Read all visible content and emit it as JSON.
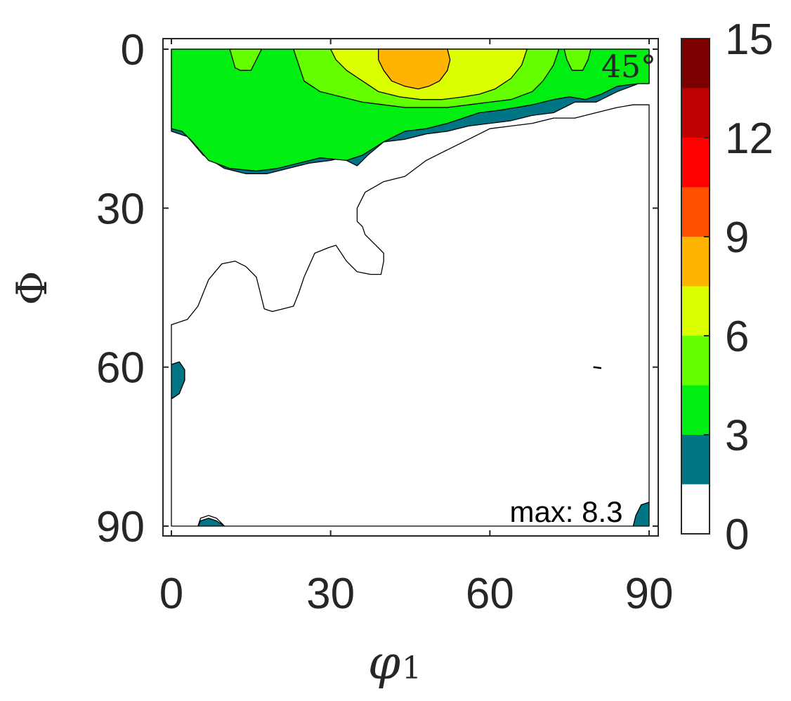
{
  "chart_data": {
    "type": "heatmap",
    "subtype": "filled-contour",
    "xlabel": "φ",
    "xlabel_subscript": "1",
    "ylabel": "Φ",
    "xlim": [
      0,
      90
    ],
    "ylim": [
      0,
      90
    ],
    "y_axis_direction": "reversed",
    "x_ticks": [
      0,
      30,
      60,
      90
    ],
    "y_ticks": [
      0,
      30,
      60,
      90
    ],
    "section_label": "45°",
    "max_annotation": "max: 8.3",
    "colorbar": {
      "ticks": [
        0,
        3,
        6,
        9,
        12,
        15
      ],
      "levels": [
        0,
        1.5,
        3,
        4.5,
        6,
        7.5,
        9,
        10.5,
        12,
        13.5,
        15
      ],
      "colors": [
        "#ffffff",
        "#007585",
        "#00ee12",
        "#66ff00",
        "#dcff00",
        "#ffb400",
        "#ff5000",
        "#ff0000",
        "#bd0000",
        "#7d0000"
      ]
    },
    "regions": [
      {
        "level": 1,
        "color": "#007585",
        "polygons": [
          [
            [
              0,
              15.5
            ],
            [
              3,
              16.5
            ],
            [
              6,
              20
            ],
            [
              10,
              22.5
            ],
            [
              14,
              23.5
            ],
            [
              18,
              23.5
            ],
            [
              22,
              22.5
            ],
            [
              26,
              21.5
            ],
            [
              30,
              21
            ],
            [
              32,
              20.5
            ],
            [
              35,
              22
            ],
            [
              37,
              20
            ],
            [
              40,
              17.5
            ],
            [
              44,
              17
            ],
            [
              48,
              16
            ],
            [
              52,
              15.5
            ],
            [
              56,
              14.5
            ],
            [
              60,
              14
            ],
            [
              64,
              13.5
            ],
            [
              68,
              12.5
            ],
            [
              72,
              12
            ],
            [
              76,
              10
            ],
            [
              80,
              10
            ],
            [
              84,
              8
            ],
            [
              88,
              6.5
            ],
            [
              90,
              6.5
            ],
            [
              90,
              0
            ],
            [
              0,
              0
            ]
          ],
          [
            [
              0,
              59.5
            ],
            [
              1.5,
              59
            ],
            [
              2.5,
              60.5
            ],
            [
              2.5,
              62.5
            ],
            [
              1.5,
              65
            ],
            [
              0,
              66
            ]
          ],
          [
            [
              5,
              90
            ],
            [
              5.5,
              89
            ],
            [
              7,
              88.5
            ],
            [
              8.5,
              89
            ],
            [
              10,
              90
            ]
          ],
          [
            [
              87,
              90
            ],
            [
              87.5,
              88
            ],
            [
              88.5,
              86
            ],
            [
              90,
              85.5
            ],
            [
              90,
              90
            ]
          ]
        ]
      },
      {
        "level": 2,
        "color": "#00ee12",
        "polygons": [
          [
            [
              0,
              0
            ],
            [
              90,
              0
            ],
            [
              90,
              6.5
            ],
            [
              88,
              6.5
            ],
            [
              84,
              7
            ],
            [
              81,
              8.5
            ],
            [
              78,
              9.5
            ],
            [
              75,
              9
            ],
            [
              72,
              9.5
            ],
            [
              68,
              10.5
            ],
            [
              65,
              11
            ],
            [
              62,
              11.5
            ],
            [
              58,
              12
            ],
            [
              55,
              13
            ],
            [
              52,
              14
            ],
            [
              48,
              15
            ],
            [
              44,
              15.5
            ],
            [
              40,
              17.5
            ],
            [
              36,
              20
            ],
            [
              33,
              21
            ],
            [
              28,
              20.5
            ],
            [
              24,
              21.5
            ],
            [
              20,
              22.5
            ],
            [
              16,
              23
            ],
            [
              11,
              22.5
            ],
            [
              7,
              21
            ],
            [
              4,
              17.5
            ],
            [
              2,
              15.5
            ],
            [
              0,
              15
            ]
          ]
        ]
      },
      {
        "level": 3,
        "color": "#66ff00",
        "polygons": [
          [
            [
              23,
              0
            ],
            [
              73,
              0
            ],
            [
              72,
              3
            ],
            [
              70,
              6
            ],
            [
              68,
              8
            ],
            [
              64,
              9.5
            ],
            [
              60,
              10
            ],
            [
              56,
              10.5
            ],
            [
              52,
              11
            ],
            [
              48,
              11
            ],
            [
              44,
              11
            ],
            [
              40,
              10.5
            ],
            [
              36,
              10
            ],
            [
              32,
              9
            ],
            [
              28,
              8
            ],
            [
              25,
              6
            ],
            [
              24,
              3
            ]
          ],
          [
            [
              11,
              0
            ],
            [
              17,
              0
            ],
            [
              16,
              2
            ],
            [
              15,
              4
            ],
            [
              13,
              4
            ],
            [
              12,
              3.5
            ]
          ],
          [
            [
              74,
              0
            ],
            [
              79,
              0
            ],
            [
              78.5,
              2
            ],
            [
              77.5,
              4
            ],
            [
              75.5,
              4
            ],
            [
              74.5,
              2
            ]
          ]
        ]
      },
      {
        "level": 4,
        "color": "#dcff00",
        "polygons": [
          [
            [
              30,
              0
            ],
            [
              67,
              0
            ],
            [
              66,
              3
            ],
            [
              64,
              5.5
            ],
            [
              61,
              7.5
            ],
            [
              58,
              8.5
            ],
            [
              55,
              9
            ],
            [
              51,
              9.5
            ],
            [
              47,
              9.5
            ],
            [
              43,
              9
            ],
            [
              39,
              8
            ],
            [
              36,
              6
            ],
            [
              33,
              4
            ],
            [
              31,
              2
            ]
          ]
        ]
      },
      {
        "level": 5,
        "color": "#ffb400",
        "polygons": [
          [
            [
              39,
              0
            ],
            [
              52,
              0
            ],
            [
              52.5,
              2
            ],
            [
              52,
              4
            ],
            [
              50.5,
              6
            ],
            [
              48.5,
              7
            ],
            [
              46.5,
              7.5
            ],
            [
              44,
              7
            ],
            [
              41.5,
              6
            ],
            [
              40,
              4
            ],
            [
              39,
              2
            ]
          ]
        ]
      }
    ],
    "white_holes": [
      [
        [
          0,
          52
        ],
        [
          3,
          51
        ],
        [
          5,
          48.5
        ],
        [
          7,
          43.5
        ],
        [
          9.5,
          40.5
        ],
        [
          12,
          40
        ],
        [
          14,
          41
        ],
        [
          16,
          43
        ],
        [
          17.5,
          49
        ],
        [
          19,
          49.5
        ],
        [
          21,
          49
        ],
        [
          23,
          48.5
        ],
        [
          24,
          46
        ],
        [
          25,
          43
        ],
        [
          27,
          38.5
        ],
        [
          29.5,
          37.5
        ],
        [
          31,
          37
        ],
        [
          33,
          40
        ],
        [
          35,
          42
        ],
        [
          37.5,
          42.5
        ],
        [
          39.5,
          42.5
        ],
        [
          40,
          40
        ],
        [
          40,
          38.5
        ],
        [
          38.5,
          37
        ],
        [
          36.5,
          35
        ],
        [
          36,
          33.5
        ],
        [
          35,
          32.5
        ],
        [
          35,
          30
        ],
        [
          36.5,
          27
        ],
        [
          40,
          25
        ],
        [
          44,
          24
        ],
        [
          48,
          21
        ],
        [
          52,
          19
        ],
        [
          56,
          17
        ],
        [
          60,
          15
        ],
        [
          64,
          14.5
        ],
        [
          68,
          14
        ],
        [
          72,
          13
        ],
        [
          76,
          13
        ],
        [
          80,
          12
        ],
        [
          84,
          11
        ],
        [
          87,
          10.5
        ],
        [
          90,
          10.5
        ],
        [
          90,
          85.5
        ],
        [
          88.5,
          86
        ],
        [
          87.5,
          88
        ],
        [
          87,
          90
        ],
        [
          10,
          90
        ],
        [
          8.5,
          88.5
        ],
        [
          7,
          88
        ],
        [
          5.5,
          88.5
        ],
        [
          5,
          90
        ],
        [
          0,
          90
        ],
        [
          0,
          66
        ],
        [
          1.5,
          65
        ],
        [
          2.5,
          62.5
        ],
        [
          2.5,
          60.5
        ],
        [
          1.5,
          59
        ],
        [
          0,
          59.5
        ]
      ]
    ],
    "contour_fragment": [
      [
        79.5,
        60
      ],
      [
        81,
        60.2
      ]
    ]
  }
}
